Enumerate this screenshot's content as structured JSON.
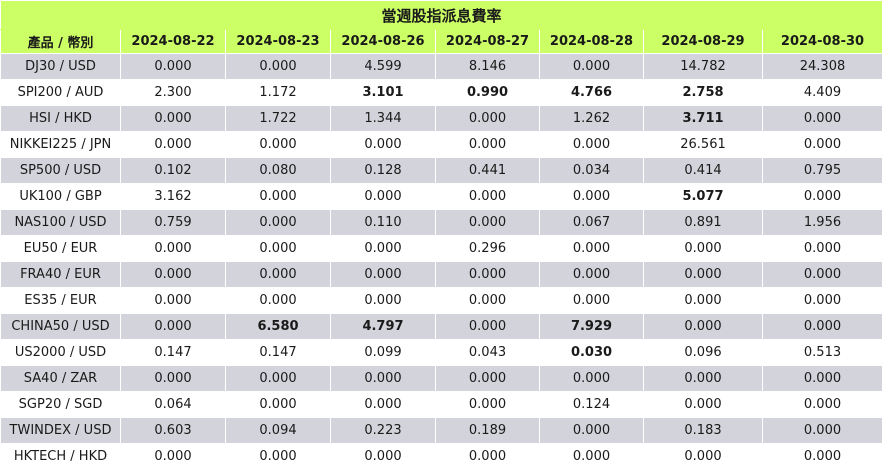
{
  "title": "當週股指派息費率",
  "header": {
    "product": "產品 / 幣別",
    "dates": [
      "2024-08-22",
      "2024-08-23",
      "2024-08-26",
      "2024-08-27",
      "2024-08-28",
      "2024-08-29",
      "2024-08-30"
    ]
  },
  "rows": [
    {
      "product": "DJ30 / USD",
      "values": [
        "0.000",
        "0.000",
        "4.599",
        "8.146",
        "0.000",
        "14.782",
        "24.308"
      ],
      "bold": [
        false,
        false,
        false,
        false,
        false,
        false,
        false
      ]
    },
    {
      "product": "SPI200 / AUD",
      "values": [
        "2.300",
        "1.172",
        "3.101",
        "0.990",
        "4.766",
        "2.758",
        "4.409"
      ],
      "bold": [
        false,
        false,
        true,
        true,
        true,
        true,
        false
      ]
    },
    {
      "product": "HSI / HKD",
      "values": [
        "0.000",
        "1.722",
        "1.344",
        "0.000",
        "1.262",
        "3.711",
        "0.000"
      ],
      "bold": [
        false,
        false,
        false,
        false,
        false,
        true,
        false
      ]
    },
    {
      "product": "NIKKEI225 / JPN",
      "values": [
        "0.000",
        "0.000",
        "0.000",
        "0.000",
        "0.000",
        "26.561",
        "0.000"
      ],
      "bold": [
        false,
        false,
        false,
        false,
        false,
        false,
        false
      ]
    },
    {
      "product": "SP500 / USD",
      "values": [
        "0.102",
        "0.080",
        "0.128",
        "0.441",
        "0.034",
        "0.414",
        "0.795"
      ],
      "bold": [
        false,
        false,
        false,
        false,
        false,
        false,
        false
      ]
    },
    {
      "product": "UK100 / GBP",
      "values": [
        "3.162",
        "0.000",
        "0.000",
        "0.000",
        "0.000",
        "5.077",
        "0.000"
      ],
      "bold": [
        false,
        false,
        false,
        false,
        false,
        true,
        false
      ]
    },
    {
      "product": "NAS100 / USD",
      "values": [
        "0.759",
        "0.000",
        "0.110",
        "0.000",
        "0.067",
        "0.891",
        "1.956"
      ],
      "bold": [
        false,
        false,
        false,
        false,
        false,
        false,
        false
      ]
    },
    {
      "product": "EU50 / EUR",
      "values": [
        "0.000",
        "0.000",
        "0.000",
        "0.296",
        "0.000",
        "0.000",
        "0.000"
      ],
      "bold": [
        false,
        false,
        false,
        false,
        false,
        false,
        false
      ]
    },
    {
      "product": "FRA40 / EUR",
      "values": [
        "0.000",
        "0.000",
        "0.000",
        "0.000",
        "0.000",
        "0.000",
        "0.000"
      ],
      "bold": [
        false,
        false,
        false,
        false,
        false,
        false,
        false
      ]
    },
    {
      "product": "ES35 / EUR",
      "values": [
        "0.000",
        "0.000",
        "0.000",
        "0.000",
        "0.000",
        "0.000",
        "0.000"
      ],
      "bold": [
        false,
        false,
        false,
        false,
        false,
        false,
        false
      ]
    },
    {
      "product": "CHINA50 / USD",
      "values": [
        "0.000",
        "6.580",
        "4.797",
        "0.000",
        "7.929",
        "0.000",
        "0.000"
      ],
      "bold": [
        false,
        true,
        true,
        false,
        true,
        false,
        false
      ]
    },
    {
      "product": "US2000 / USD",
      "values": [
        "0.147",
        "0.147",
        "0.099",
        "0.043",
        "0.030",
        "0.096",
        "0.513"
      ],
      "bold": [
        false,
        false,
        false,
        false,
        true,
        false,
        false
      ]
    },
    {
      "product": "SA40 / ZAR",
      "values": [
        "0.000",
        "0.000",
        "0.000",
        "0.000",
        "0.000",
        "0.000",
        "0.000"
      ],
      "bold": [
        false,
        false,
        false,
        false,
        false,
        false,
        false
      ]
    },
    {
      "product": "SGP20 / SGD",
      "values": [
        "0.064",
        "0.000",
        "0.000",
        "0.000",
        "0.124",
        "0.000",
        "0.000"
      ],
      "bold": [
        false,
        false,
        false,
        false,
        false,
        false,
        false
      ]
    },
    {
      "product": "TWINDEX / USD",
      "values": [
        "0.603",
        "0.094",
        "0.223",
        "0.189",
        "0.000",
        "0.183",
        "0.000"
      ],
      "bold": [
        false,
        false,
        false,
        false,
        false,
        false,
        false
      ]
    },
    {
      "product": "HKTECH / HKD",
      "values": [
        "0.000",
        "0.000",
        "0.000",
        "0.000",
        "0.000",
        "0.000",
        "0.000"
      ],
      "bold": [
        false,
        false,
        false,
        false,
        false,
        false,
        false
      ]
    }
  ],
  "colors": {
    "header_bg": "#ccff66",
    "stripe_bg": "#d3d3db",
    "plain_bg": "#ffffff"
  }
}
